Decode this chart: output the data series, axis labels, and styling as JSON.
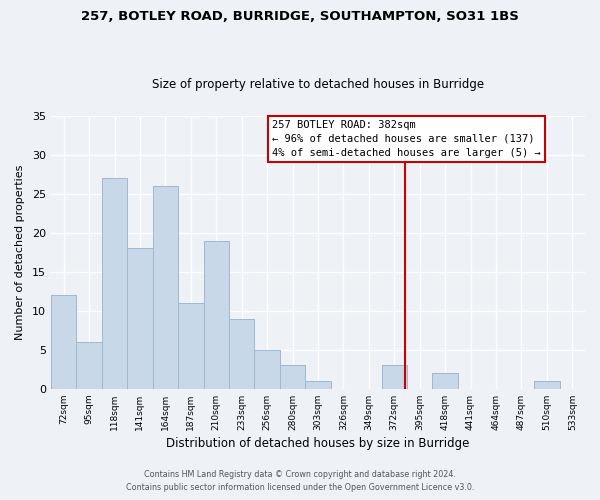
{
  "title1": "257, BOTLEY ROAD, BURRIDGE, SOUTHAMPTON, SO31 1BS",
  "title2": "Size of property relative to detached houses in Burridge",
  "xlabel": "Distribution of detached houses by size in Burridge",
  "ylabel": "Number of detached properties",
  "footer1": "Contains HM Land Registry data © Crown copyright and database right 2024.",
  "footer2": "Contains public sector information licensed under the Open Government Licence v3.0.",
  "bin_labels": [
    "72sqm",
    "95sqm",
    "118sqm",
    "141sqm",
    "164sqm",
    "187sqm",
    "210sqm",
    "233sqm",
    "256sqm",
    "280sqm",
    "303sqm",
    "326sqm",
    "349sqm",
    "372sqm",
    "395sqm",
    "418sqm",
    "441sqm",
    "464sqm",
    "487sqm",
    "510sqm",
    "533sqm"
  ],
  "bar_values": [
    12,
    6,
    27,
    18,
    26,
    11,
    19,
    9,
    5,
    3,
    1,
    0,
    0,
    3,
    0,
    2,
    0,
    0,
    0,
    1,
    0
  ],
  "bar_color": "#c8d8e8",
  "bar_edge_color": "#a0b8cc",
  "vline_color": "#cc0000",
  "annotation_title": "257 BOTLEY ROAD: 382sqm",
  "annotation_line1": "← 96% of detached houses are smaller (137)",
  "annotation_line2": "4% of semi-detached houses are larger (5) →",
  "annotation_box_color": "#ffffff",
  "annotation_border_color": "#cc0000",
  "ylim": [
    0,
    35
  ],
  "yticks": [
    0,
    5,
    10,
    15,
    20,
    25,
    30,
    35
  ],
  "background_color": "#eef2f7"
}
